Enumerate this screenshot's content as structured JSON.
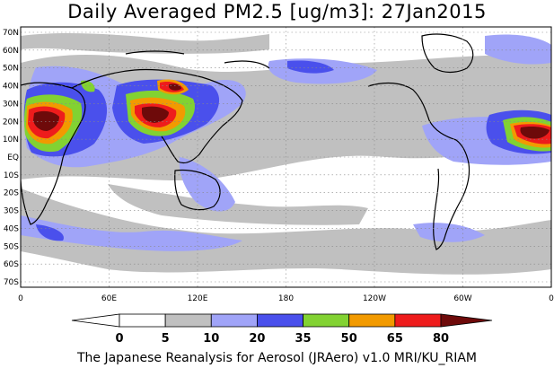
{
  "title": "Daily Averaged PM2.5 [ug/m3]: 27Jan2015",
  "footer": "The Japanese Reanalysis for Aerosol (JRAero) v1.0 MRI/KU_RIAM",
  "map": {
    "lat_labels": [
      "70N",
      "60N",
      "50N",
      "40N",
      "30N",
      "20N",
      "10N",
      "EQ",
      "10S",
      "20S",
      "30S",
      "40S",
      "50S",
      "60S",
      "70S"
    ],
    "lon_labels": [
      "0",
      "60E",
      "120E",
      "180",
      "120W",
      "60W",
      "0"
    ]
  },
  "legend": {
    "tick_labels": [
      "0",
      "5",
      "10",
      "20",
      "35",
      "50",
      "65",
      "80"
    ],
    "colors": [
      "#ffffff",
      "#c0c0c0",
      "#a0a4f8",
      "#4a50ec",
      "#82d232",
      "#f29a00",
      "#ee1c1c",
      "#6e0a0a"
    ]
  }
}
